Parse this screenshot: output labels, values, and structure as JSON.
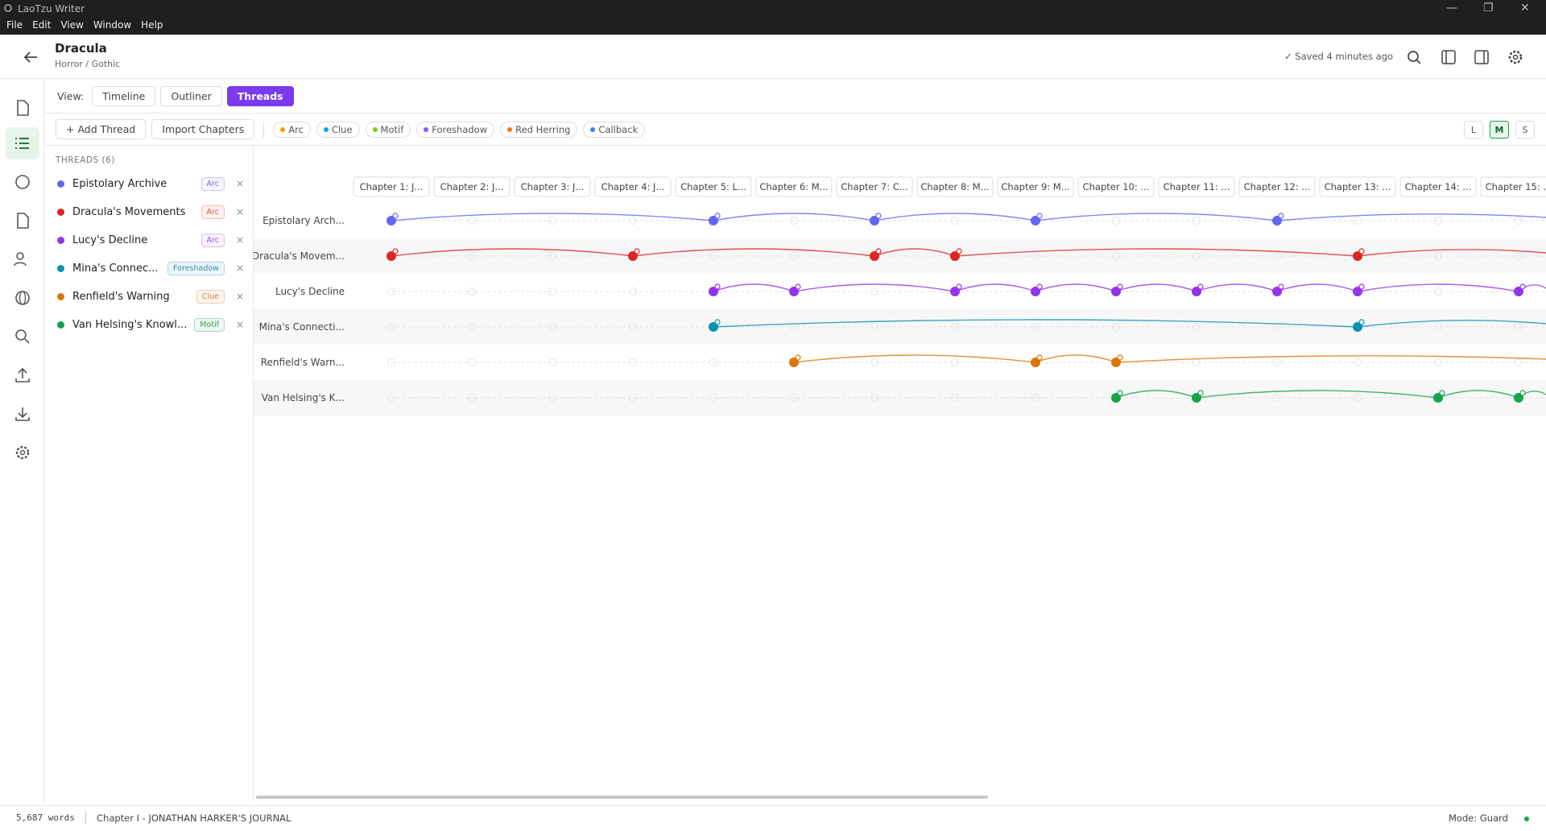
{
  "window": {
    "title": "LaoTzu Writer",
    "menu": [
      "File",
      "Edit",
      "View",
      "Window",
      "Help"
    ]
  },
  "header": {
    "title": "Dracula",
    "subtitle": "Horror / Gothic",
    "status": "Saved 4 minutes ago"
  },
  "view": {
    "label": "View:",
    "tabs": [
      "Timeline",
      "Outliner",
      "Threads"
    ]
  },
  "toolbar": {
    "buttons": [
      "+ Add Thread",
      "Import Chapters"
    ],
    "legend": [
      {
        "name": "Arc",
        "color": "#f59e0b"
      },
      {
        "name": "Clue",
        "color": "#0ea5e9"
      },
      {
        "name": "Motif",
        "color": "#84cc16"
      },
      {
        "name": "Foreshadow",
        "color": "#8b5cf6"
      },
      {
        "name": "Red Herring",
        "color": "#f97316"
      },
      {
        "name": "Callback",
        "color": "#3b82f6"
      }
    ],
    "sizes": [
      "L",
      "M",
      "S"
    ]
  },
  "sidebar": {
    "heading": "THREADS (6)",
    "threads": [
      {
        "name": "Epistolary Archive",
        "tag": "Arc",
        "color": "#6366f1",
        "tag_color": "#7c6fd6"
      },
      {
        "name": "Dracula's Movements",
        "tag": "Arc",
        "color": "#dc2626",
        "tag_color": "#d9534f"
      },
      {
        "name": "Lucy's Decline",
        "tag": "Arc",
        "color": "#9333ea",
        "tag_color": "#9b59d6"
      },
      {
        "name": "Mina's Connec...",
        "tag": "Foreshadow",
        "color": "#0891b2",
        "tag_color": "#2b8fb3"
      },
      {
        "name": "Renfield's Warning",
        "tag": "Clue",
        "color": "#d97706",
        "tag_color": "#d9822b"
      },
      {
        "name": "Van Helsing's Knowl...",
        "tag": "Motif",
        "color": "#16a34a",
        "tag_color": "#2f9e54"
      }
    ]
  },
  "grid": {
    "chapters": [
      "Chapter 1: J...",
      "Chapter 2: J...",
      "Chapter 3: J...",
      "Chapter 4: J...",
      "Chapter 5: L...",
      "Chapter 6: M...",
      "Chapter 7: C...",
      "Chapter 8: M...",
      "Chapter 9: M...",
      "Chapter 10: ...",
      "Chapter 11: ...",
      "Chapter 12: ...",
      "Chapter 13: ...",
      "Chapter 14: ...",
      "Chapter 15: ..."
    ],
    "rows": [
      {
        "label": "Epistolary Arch...",
        "color": "#6366f1",
        "chapters": [
          1,
          5,
          7,
          9,
          12
        ]
      },
      {
        "label": "Dracula's Movem...",
        "color": "#dc2626",
        "chapters": [
          1,
          4,
          7,
          8,
          13
        ]
      },
      {
        "label": "Lucy's Decline",
        "color": "#9333ea",
        "chapters": [
          5,
          6,
          8,
          9,
          10,
          11,
          12,
          13,
          15
        ]
      },
      {
        "label": "Mina's Connecti...",
        "color": "#0891b2",
        "chapters": [
          5,
          13
        ]
      },
      {
        "label": "Renfield's Warn...",
        "color": "#d97706",
        "chapters": [
          6,
          9,
          10
        ]
      },
      {
        "label": "Van Helsing's K...",
        "color": "#16a34a",
        "chapters": [
          10,
          11,
          14,
          15
        ]
      }
    ]
  },
  "status": {
    "words": "5,687 words",
    "chapter": "Chapter I - JONATHAN HARKER'S JOURNAL",
    "mode": "Mode: Guard"
  }
}
